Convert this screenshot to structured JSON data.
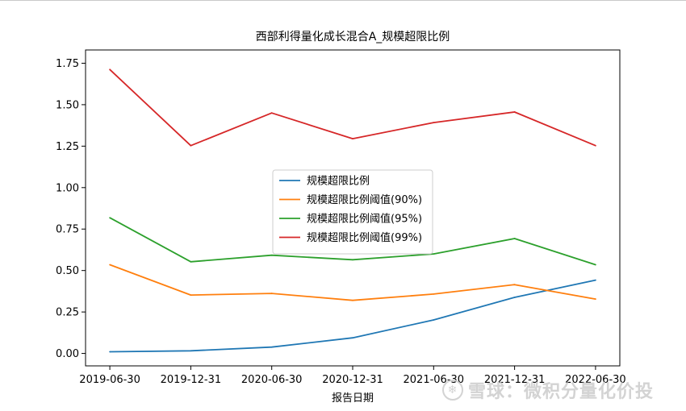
{
  "chart_data": {
    "type": "line",
    "title": "西部利得量化成长混合A_规模超限比例",
    "xlabel": "报告日期",
    "ylabel": "",
    "categories": [
      "2019-06-30",
      "2019-12-31",
      "2020-06-30",
      "2020-12-31",
      "2021-06-30",
      "2021-12-31",
      "2022-06-30"
    ],
    "y_ticks": [
      "0.00",
      "0.25",
      "0.50",
      "0.75",
      "1.00",
      "1.25",
      "1.50",
      "1.75"
    ],
    "ylim": [
      -0.075,
      1.83
    ],
    "grid": false,
    "legend_position": "center",
    "series": [
      {
        "name": "规模超限比例",
        "color": "#1f77b4",
        "values": [
          0.01,
          0.016,
          0.038,
          0.094,
          0.202,
          0.338,
          0.442
        ]
      },
      {
        "name": "规模超限比例阈值(90%)",
        "color": "#ff7f0e",
        "values": [
          0.535,
          0.352,
          0.362,
          0.32,
          0.358,
          0.415,
          0.328
        ]
      },
      {
        "name": "规模超限比例阈值(95%)",
        "color": "#2ca02c",
        "values": [
          0.818,
          0.553,
          0.592,
          0.565,
          0.6,
          0.693,
          0.535
        ]
      },
      {
        "name": "规模超限比例阈值(99%)",
        "color": "#d62728",
        "values": [
          1.712,
          1.253,
          1.45,
          1.295,
          1.392,
          1.456,
          1.253
        ]
      }
    ]
  },
  "watermark": {
    "icon": "snowball-logo-icon",
    "text": "雪球：微积分量化价投"
  }
}
